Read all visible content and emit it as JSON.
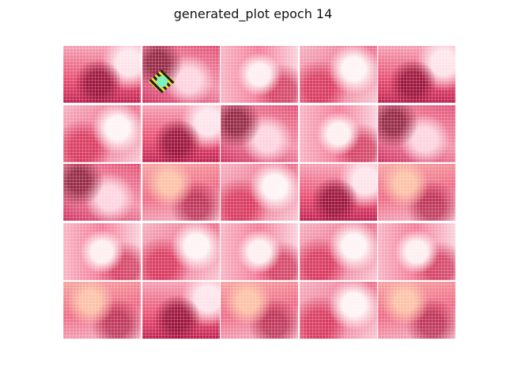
{
  "figure": {
    "title": "generated_plot epoch 14",
    "grid_rows": 5,
    "grid_cols": 5
  }
}
